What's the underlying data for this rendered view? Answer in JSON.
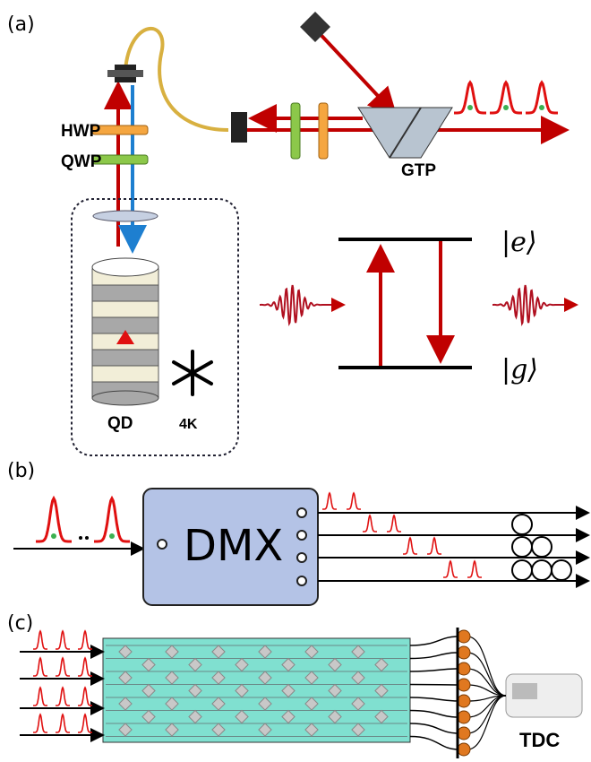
{
  "panel_a": {
    "label": "(a)",
    "hwp": "HWP",
    "qwp": "QWP",
    "gtp": "GTP",
    "qd": "QD",
    "temperature": "4K",
    "excited_state": "|e⟩",
    "ground_state": "|g⟩"
  },
  "panel_b": {
    "label": "(b)",
    "demux": "DMX"
  },
  "panel_c": {
    "label": "(c)",
    "tdc": "TDC"
  }
}
